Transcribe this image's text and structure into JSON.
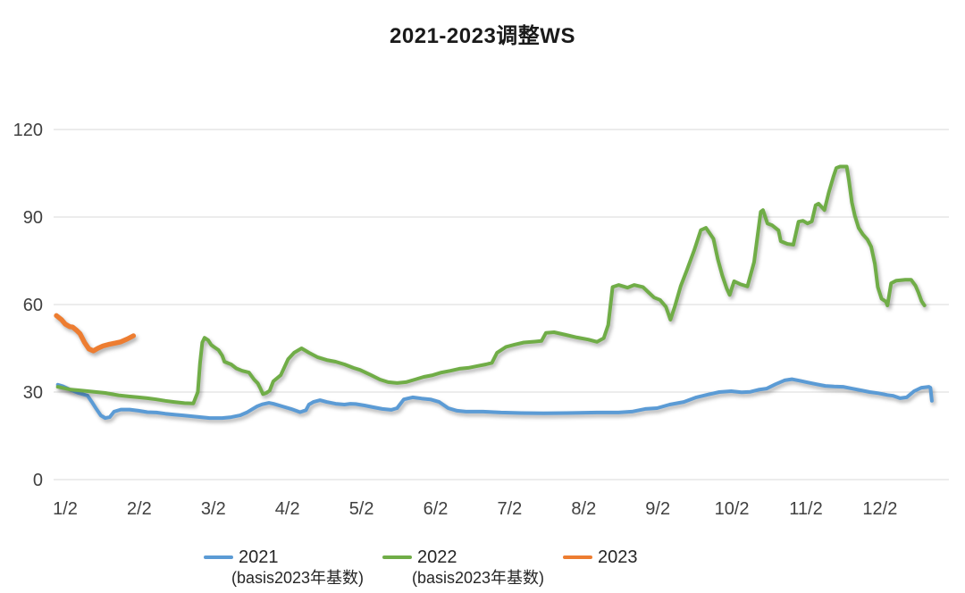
{
  "title": "2021-2023调整WS",
  "chart_data": {
    "type": "line",
    "title": "2021-2023调整WS",
    "x_axis": {
      "tick_labels": [
        "1/2",
        "2/2",
        "3/2",
        "4/2",
        "5/2",
        "6/2",
        "7/2",
        "8/2",
        "9/2",
        "10/2",
        "11/2",
        "12/2"
      ],
      "tick_positions": [
        1,
        2,
        3,
        4,
        5,
        6,
        7,
        8,
        9,
        10,
        11,
        12
      ]
    },
    "y_axis": {
      "ticks": [
        0,
        30,
        60,
        90,
        120
      ],
      "range": [
        0,
        120
      ]
    },
    "grid": {
      "horizontal": true,
      "color": "#D9D9D9"
    },
    "legend": {
      "position": "bottom",
      "entries": [
        "2021",
        "2022",
        "2023"
      ]
    },
    "annotations": [
      {
        "text": "(basis2023年基数)"
      },
      {
        "text": "(basis2023年基数)"
      }
    ],
    "series": [
      {
        "name": "2021",
        "color": "#5B9BD5",
        "points": [
          [
            0.9,
            32.5
          ],
          [
            0.97,
            32.0
          ],
          [
            1.06,
            30.9
          ],
          [
            1.18,
            29.7
          ],
          [
            1.3,
            28.8
          ],
          [
            1.36,
            26.6
          ],
          [
            1.42,
            24.2
          ],
          [
            1.48,
            22.0
          ],
          [
            1.54,
            21.1
          ],
          [
            1.6,
            21.4
          ],
          [
            1.66,
            23.3
          ],
          [
            1.75,
            24.0
          ],
          [
            1.87,
            24.0
          ],
          [
            1.99,
            23.6
          ],
          [
            2.11,
            23.1
          ],
          [
            2.23,
            23.0
          ],
          [
            2.35,
            22.6
          ],
          [
            2.47,
            22.3
          ],
          [
            2.59,
            22.0
          ],
          [
            2.71,
            21.7
          ],
          [
            2.83,
            21.4
          ],
          [
            2.95,
            21.1
          ],
          [
            3.12,
            21.1
          ],
          [
            3.24,
            21.4
          ],
          [
            3.36,
            22.0
          ],
          [
            3.45,
            23.0
          ],
          [
            3.53,
            24.2
          ],
          [
            3.59,
            25.1
          ],
          [
            3.66,
            25.8
          ],
          [
            3.75,
            26.3
          ],
          [
            3.81,
            26.0
          ],
          [
            3.93,
            25.1
          ],
          [
            4.05,
            24.2
          ],
          [
            4.17,
            23.1
          ],
          [
            4.25,
            23.8
          ],
          [
            4.29,
            25.7
          ],
          [
            4.35,
            26.6
          ],
          [
            4.44,
            27.2
          ],
          [
            4.53,
            26.6
          ],
          [
            4.65,
            26.0
          ],
          [
            4.77,
            25.7
          ],
          [
            4.85,
            26.0
          ],
          [
            4.92,
            25.9
          ],
          [
            5.04,
            25.4
          ],
          [
            5.16,
            24.8
          ],
          [
            5.28,
            24.2
          ],
          [
            5.4,
            23.9
          ],
          [
            5.48,
            24.5
          ],
          [
            5.57,
            27.5
          ],
          [
            5.69,
            28.2
          ],
          [
            5.81,
            27.8
          ],
          [
            5.93,
            27.5
          ],
          [
            6.05,
            26.6
          ],
          [
            6.17,
            24.5
          ],
          [
            6.29,
            23.6
          ],
          [
            6.41,
            23.3
          ],
          [
            6.64,
            23.3
          ],
          [
            6.88,
            23.0
          ],
          [
            7.16,
            22.8
          ],
          [
            7.46,
            22.7
          ],
          [
            7.76,
            22.8
          ],
          [
            7.94,
            22.9
          ],
          [
            8.18,
            23.0
          ],
          [
            8.47,
            23.0
          ],
          [
            8.65,
            23.3
          ],
          [
            8.83,
            24.2
          ],
          [
            8.99,
            24.5
          ],
          [
            9.16,
            25.7
          ],
          [
            9.35,
            26.6
          ],
          [
            9.52,
            28.2
          ],
          [
            9.67,
            29.1
          ],
          [
            9.83,
            30.0
          ],
          [
            9.99,
            30.3
          ],
          [
            10.13,
            29.9
          ],
          [
            10.25,
            30.1
          ],
          [
            10.36,
            30.8
          ],
          [
            10.47,
            31.2
          ],
          [
            10.59,
            32.7
          ],
          [
            10.71,
            34.0
          ],
          [
            10.81,
            34.4
          ],
          [
            10.93,
            33.8
          ],
          [
            11.02,
            33.3
          ],
          [
            11.14,
            32.7
          ],
          [
            11.26,
            32.1
          ],
          [
            11.38,
            31.9
          ],
          [
            11.5,
            31.8
          ],
          [
            11.62,
            31.2
          ],
          [
            11.74,
            30.6
          ],
          [
            11.86,
            30.0
          ],
          [
            11.98,
            29.6
          ],
          [
            12.1,
            29.0
          ],
          [
            12.18,
            28.7
          ],
          [
            12.27,
            27.9
          ],
          [
            12.36,
            28.2
          ],
          [
            12.46,
            30.3
          ],
          [
            12.56,
            31.5
          ],
          [
            12.66,
            31.8
          ],
          [
            12.68,
            31.5
          ],
          [
            12.7,
            27.0
          ]
        ]
      },
      {
        "name": "2022",
        "color": "#70AD47",
        "points": [
          [
            0.9,
            31.8
          ],
          [
            1.06,
            30.9
          ],
          [
            1.18,
            30.6
          ],
          [
            1.3,
            30.3
          ],
          [
            1.42,
            30.0
          ],
          [
            1.54,
            29.7
          ],
          [
            1.72,
            28.9
          ],
          [
            1.86,
            28.5
          ],
          [
            1.99,
            28.2
          ],
          [
            2.11,
            27.9
          ],
          [
            2.23,
            27.5
          ],
          [
            2.35,
            27.0
          ],
          [
            2.47,
            26.6
          ],
          [
            2.61,
            26.2
          ],
          [
            2.73,
            26.1
          ],
          [
            2.79,
            30.0
          ],
          [
            2.82,
            40.0
          ],
          [
            2.85,
            47.0
          ],
          [
            2.88,
            48.6
          ],
          [
            2.93,
            47.8
          ],
          [
            2.97,
            46.2
          ],
          [
            3.0,
            45.6
          ],
          [
            3.07,
            44.4
          ],
          [
            3.12,
            42.5
          ],
          [
            3.15,
            40.4
          ],
          [
            3.24,
            39.5
          ],
          [
            3.31,
            38.1
          ],
          [
            3.39,
            37.3
          ],
          [
            3.48,
            36.7
          ],
          [
            3.55,
            34.3
          ],
          [
            3.6,
            33.0
          ],
          [
            3.63,
            31.5
          ],
          [
            3.67,
            29.3
          ],
          [
            3.72,
            29.8
          ],
          [
            3.76,
            30.5
          ],
          [
            3.81,
            33.7
          ],
          [
            3.91,
            35.8
          ],
          [
            4.01,
            41.3
          ],
          [
            4.09,
            43.5
          ],
          [
            4.19,
            45.0
          ],
          [
            4.29,
            43.5
          ],
          [
            4.41,
            41.9
          ],
          [
            4.53,
            41.0
          ],
          [
            4.65,
            40.4
          ],
          [
            4.77,
            39.5
          ],
          [
            4.89,
            38.3
          ],
          [
            4.98,
            37.6
          ],
          [
            5.13,
            35.8
          ],
          [
            5.25,
            34.3
          ],
          [
            5.36,
            33.4
          ],
          [
            5.48,
            33.1
          ],
          [
            5.6,
            33.4
          ],
          [
            5.72,
            34.3
          ],
          [
            5.84,
            35.2
          ],
          [
            5.96,
            35.8
          ],
          [
            6.08,
            36.7
          ],
          [
            6.2,
            37.3
          ],
          [
            6.32,
            38.0
          ],
          [
            6.44,
            38.3
          ],
          [
            6.56,
            38.9
          ],
          [
            6.68,
            39.5
          ],
          [
            6.76,
            40.0
          ],
          [
            6.83,
            43.5
          ],
          [
            6.95,
            45.5
          ],
          [
            7.07,
            46.3
          ],
          [
            7.19,
            47.0
          ],
          [
            7.34,
            47.3
          ],
          [
            7.43,
            47.5
          ],
          [
            7.49,
            50.3
          ],
          [
            7.6,
            50.5
          ],
          [
            7.76,
            49.6
          ],
          [
            7.91,
            48.7
          ],
          [
            8.06,
            48.0
          ],
          [
            8.18,
            47.2
          ],
          [
            8.27,
            48.5
          ],
          [
            8.33,
            53.0
          ],
          [
            8.39,
            66.0
          ],
          [
            8.47,
            66.7
          ],
          [
            8.59,
            65.8
          ],
          [
            8.68,
            66.7
          ],
          [
            8.8,
            66.0
          ],
          [
            8.87,
            64.3
          ],
          [
            8.95,
            62.4
          ],
          [
            9.03,
            61.6
          ],
          [
            9.11,
            59.2
          ],
          [
            9.17,
            54.8
          ],
          [
            9.23,
            59.4
          ],
          [
            9.31,
            66.4
          ],
          [
            9.39,
            71.6
          ],
          [
            9.49,
            78.5
          ],
          [
            9.58,
            85.5
          ],
          [
            9.65,
            86.3
          ],
          [
            9.75,
            82.6
          ],
          [
            9.81,
            75.6
          ],
          [
            9.87,
            70.0
          ],
          [
            9.93,
            65.5
          ],
          [
            9.97,
            63.3
          ],
          [
            10.03,
            68.0
          ],
          [
            10.11,
            67.0
          ],
          [
            10.21,
            66.2
          ],
          [
            10.3,
            74.6
          ],
          [
            10.39,
            91.8
          ],
          [
            10.42,
            92.4
          ],
          [
            10.48,
            87.8
          ],
          [
            10.54,
            87.2
          ],
          [
            10.63,
            85.4
          ],
          [
            10.66,
            81.7
          ],
          [
            10.75,
            80.8
          ],
          [
            10.83,
            80.5
          ],
          [
            10.9,
            88.4
          ],
          [
            10.96,
            88.7
          ],
          [
            11.02,
            87.8
          ],
          [
            11.08,
            88.5
          ],
          [
            11.13,
            94.0
          ],
          [
            11.17,
            94.6
          ],
          [
            11.25,
            92.4
          ],
          [
            11.31,
            98.6
          ],
          [
            11.37,
            103.8
          ],
          [
            11.41,
            106.8
          ],
          [
            11.46,
            107.3
          ],
          [
            11.55,
            107.3
          ],
          [
            11.58,
            102.5
          ],
          [
            11.62,
            95.0
          ],
          [
            11.66,
            90.5
          ],
          [
            11.71,
            86.3
          ],
          [
            11.77,
            84.0
          ],
          [
            11.83,
            82.3
          ],
          [
            11.88,
            79.8
          ],
          [
            11.93,
            74.0
          ],
          [
            11.97,
            66.0
          ],
          [
            12.02,
            62.0
          ],
          [
            12.08,
            61.0
          ],
          [
            12.1,
            59.7
          ],
          [
            12.15,
            67.3
          ],
          [
            12.22,
            68.2
          ],
          [
            12.34,
            68.5
          ],
          [
            12.42,
            68.5
          ],
          [
            12.48,
            66.4
          ],
          [
            12.52,
            64.0
          ],
          [
            12.56,
            61.2
          ],
          [
            12.6,
            59.7
          ]
        ]
      },
      {
        "name": "2023",
        "color": "#ED7D31",
        "points": [
          [
            0.88,
            56.2
          ],
          [
            0.95,
            54.8
          ],
          [
            1.0,
            53.3
          ],
          [
            1.06,
            52.4
          ],
          [
            1.1,
            52.3
          ],
          [
            1.16,
            51.0
          ],
          [
            1.2,
            50.0
          ],
          [
            1.26,
            47.0
          ],
          [
            1.32,
            44.8
          ],
          [
            1.38,
            44.1
          ],
          [
            1.44,
            45.0
          ],
          [
            1.51,
            45.8
          ],
          [
            1.6,
            46.4
          ],
          [
            1.68,
            46.8
          ],
          [
            1.75,
            47.2
          ],
          [
            1.84,
            48.2
          ],
          [
            1.92,
            49.3
          ]
        ]
      }
    ]
  }
}
